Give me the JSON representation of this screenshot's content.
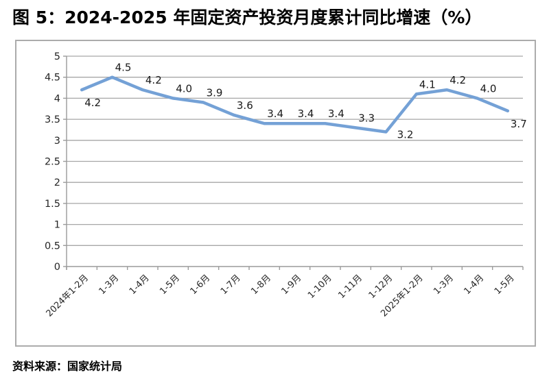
{
  "figure": {
    "title": "图 5：2024-2025 年固定资产投资月度累计同比增速（%）",
    "source": "资料来源：国家统计局"
  },
  "chart_data": {
    "type": "line",
    "title": "2024-2025 年固定资产投资月度累计同比增速（%）",
    "categories": [
      "2024年1-2月",
      "1-3月",
      "1-4月",
      "1-5月",
      "1-6月",
      "1-7月",
      "1-8月",
      "1-9月",
      "1-10月",
      "1-11月",
      "1-12月",
      "2025年1-2月",
      "1-3月",
      "1-4月",
      "1-5月"
    ],
    "values": [
      4.2,
      4.5,
      4.2,
      4.0,
      3.9,
      3.6,
      3.4,
      3.4,
      3.4,
      3.3,
      3.2,
      4.1,
      4.2,
      4.0,
      3.7
    ],
    "xlabel": "",
    "ylabel": "",
    "ylim": [
      0,
      5
    ],
    "yticks": [
      0,
      0.5,
      1,
      1.5,
      2,
      2.5,
      3,
      3.5,
      4,
      4.5,
      5
    ],
    "grid": "horizontal",
    "legend_position": "none",
    "data_labels": true,
    "label_placement": [
      "below",
      "above",
      "above",
      "above",
      "above",
      "above",
      "above",
      "above",
      "above",
      "above",
      "below-right",
      "above",
      "above",
      "above",
      "below"
    ],
    "line_color": "#74A1D6",
    "gridline_color": "#a6a6a6",
    "axis_color": "#9a9a9a",
    "text_color": "#262626"
  }
}
